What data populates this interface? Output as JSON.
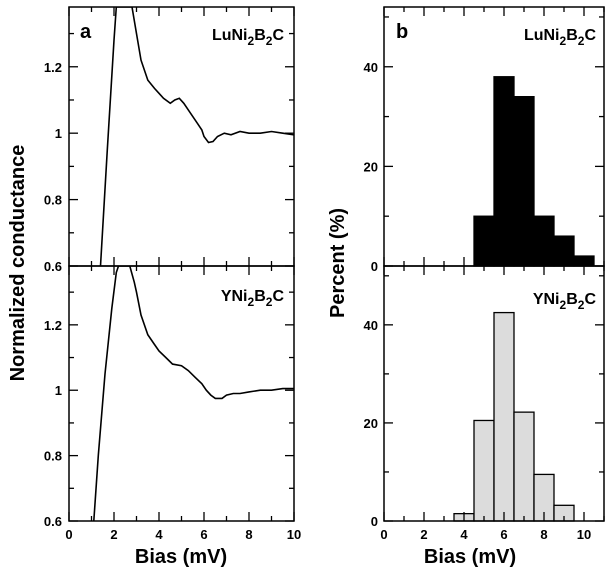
{
  "chart_data": [
    {
      "panel": "a",
      "type": "line",
      "xlabel": "Bias (mV)",
      "ylabel": "Normalized conductance",
      "xlim": [
        0,
        10
      ],
      "ylim": [
        0.6,
        1.38
      ],
      "x_ticks": [
        "0",
        "2",
        "4",
        "6",
        "8",
        "10"
      ],
      "y_ticks": [
        "0.6",
        "0.8",
        "1",
        "1.2"
      ],
      "subplots": [
        {
          "label": "LuNi2B2C",
          "series": [
            {
              "x": [
                1.4,
                1.7,
                2.0,
                2.1,
                2.2,
                2.3,
                2.5,
                2.8,
                3.0,
                3.2,
                3.5,
                3.8,
                4.0,
                4.2,
                4.5,
                4.7,
                4.9,
                5.1,
                5.3,
                5.5,
                5.7,
                5.9,
                6.0,
                6.2,
                6.4,
                6.6,
                6.9,
                7.2,
                7.6,
                8.0,
                8.5,
                9.0,
                9.5,
                10.0
              ],
              "y": [
                0.6,
                0.95,
                1.28,
                1.38,
                1.38,
                1.38,
                1.38,
                1.38,
                1.3,
                1.22,
                1.16,
                1.135,
                1.12,
                1.105,
                1.09,
                1.1,
                1.105,
                1.09,
                1.07,
                1.05,
                1.03,
                1.01,
                0.99,
                0.972,
                0.975,
                0.99,
                1.0,
                0.995,
                1.005,
                1.0,
                1.0,
                1.005,
                1.0,
                0.995
              ]
            }
          ]
        },
        {
          "label": "YNi2B2C",
          "series": [
            {
              "x": [
                1.1,
                1.3,
                1.6,
                1.9,
                2.1,
                2.2,
                2.35,
                2.5,
                2.7,
                2.9,
                3.0,
                3.2,
                3.5,
                3.8,
                4.0,
                4.3,
                4.6,
                5.0,
                5.3,
                5.6,
                5.9,
                6.1,
                6.3,
                6.5,
                6.8,
                7.0,
                7.3,
                7.6,
                8.0,
                8.5,
                9.0,
                9.5,
                10.0
              ],
              "y": [
                0.6,
                0.8,
                1.05,
                1.25,
                1.36,
                1.38,
                1.38,
                1.38,
                1.38,
                1.33,
                1.3,
                1.23,
                1.17,
                1.14,
                1.12,
                1.1,
                1.08,
                1.075,
                1.06,
                1.04,
                1.02,
                1.0,
                0.985,
                0.975,
                0.975,
                0.985,
                0.99,
                0.99,
                0.995,
                1.0,
                1.0,
                1.005,
                1.005
              ]
            }
          ]
        }
      ]
    },
    {
      "panel": "b",
      "type": "bar",
      "xlabel": "Bias (mV)",
      "ylabel": "Percent (%)",
      "xlim": [
        0,
        11
      ],
      "ylim": [
        0,
        52
      ],
      "x_ticks": [
        "0",
        "2",
        "4",
        "6",
        "8",
        "10"
      ],
      "y_ticks": [
        "0",
        "20",
        "40"
      ],
      "bin_width": 1,
      "subplots": [
        {
          "label": "LuNi2B2C",
          "color": "#000000",
          "bins": [
            5,
            6,
            7,
            8,
            9,
            10
          ],
          "values": [
            10,
            38,
            34,
            10,
            6,
            2
          ]
        },
        {
          "label": "YNi2B2C",
          "color": "#dcdcdc",
          "bins": [
            4,
            5,
            6,
            7,
            8,
            9
          ],
          "values": [
            1.5,
            20.5,
            42.5,
            22.2,
            9.5,
            3.2
          ]
        }
      ]
    }
  ]
}
